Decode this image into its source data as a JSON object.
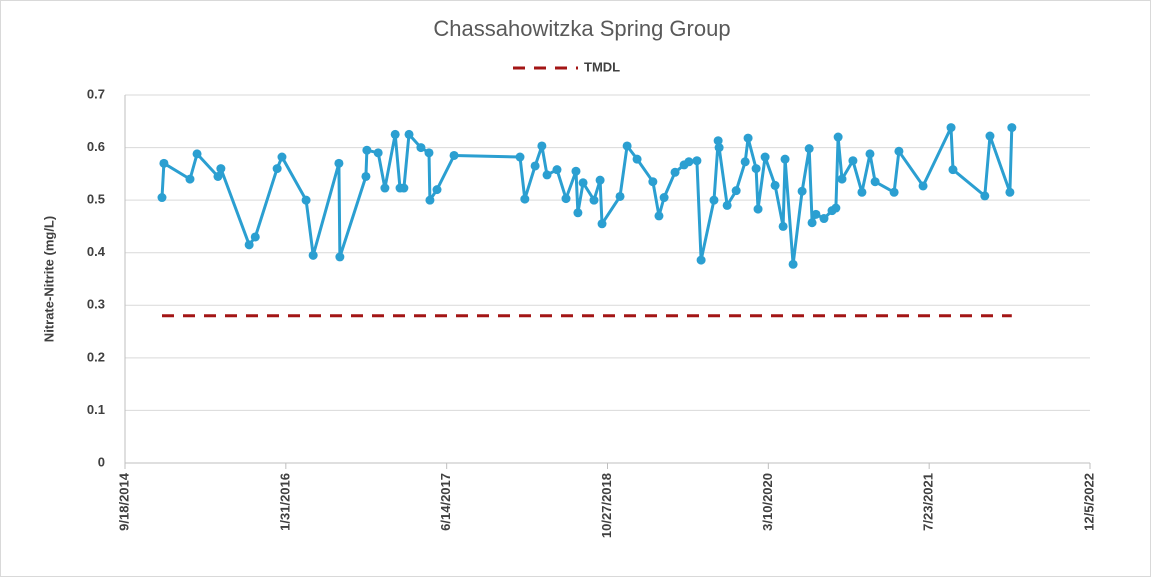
{
  "chart_data": {
    "type": "line",
    "title": "Chassahowitzka Spring Group",
    "y_label": "Nitrate-Nitrite (mg/L)",
    "xlim": [
      "2014-09-18",
      "2022-12-05"
    ],
    "xticks": [
      {
        "value": "2014-09-18",
        "label": "9/18/2014"
      },
      {
        "value": "2016-01-31",
        "label": "1/31/2016"
      },
      {
        "value": "2017-06-14",
        "label": "6/14/2017"
      },
      {
        "value": "2018-10-27",
        "label": "10/27/2018"
      },
      {
        "value": "2020-03-10",
        "label": "3/10/2020"
      },
      {
        "value": "2021-07-23",
        "label": "7/23/2021"
      },
      {
        "value": "2022-12-05",
        "label": "12/5/2022"
      }
    ],
    "ylim": [
      0,
      0.7
    ],
    "yticks": [
      0,
      0.1,
      0.2,
      0.3,
      0.4,
      0.5,
      0.6,
      0.7
    ],
    "grid": true,
    "legend": "top",
    "series": [
      {
        "color": "#2b9fd1",
        "markers": true,
        "x": [
          "2015-01-11",
          "2015-01-17",
          "2015-04-08",
          "2015-04-30",
          "2015-07-04",
          "2015-07-13",
          "2015-10-09",
          "2015-10-28",
          "2016-01-04",
          "2016-01-19",
          "2016-04-03",
          "2016-04-25",
          "2016-07-14",
          "2016-07-17",
          "2016-10-06",
          "2016-10-09",
          "2016-11-13",
          "2016-12-04",
          "2017-01-05",
          "2017-01-20",
          "2017-02-01",
          "2017-02-17",
          "2017-03-26",
          "2017-04-20",
          "2017-04-23",
          "2017-05-15",
          "2017-07-07",
          "2018-01-28",
          "2018-02-12",
          "2018-03-16",
          "2018-04-06",
          "2018-04-22",
          "2018-05-23",
          "2018-06-20",
          "2018-07-21",
          "2018-07-27",
          "2018-08-12",
          "2018-09-15",
          "2018-10-04",
          "2018-10-10",
          "2018-12-05",
          "2018-12-27",
          "2019-01-27",
          "2019-03-17",
          "2019-04-05",
          "2019-04-21",
          "2019-05-25",
          "2019-06-22",
          "2019-07-07",
          "2019-08-01",
          "2019-08-14",
          "2019-09-23",
          "2019-10-06",
          "2019-10-09",
          "2019-11-03",
          "2019-12-01",
          "2019-12-29",
          "2020-01-07",
          "2020-02-01",
          "2020-02-07",
          "2020-02-29",
          "2020-03-31",
          "2020-04-25",
          "2020-05-01",
          "2020-05-26",
          "2020-06-23",
          "2020-07-15",
          "2020-07-24",
          "2020-08-05",
          "2020-08-30",
          "2020-09-24",
          "2020-10-06",
          "2020-10-13",
          "2020-10-25",
          "2020-11-28",
          "2020-12-26",
          "2021-01-20",
          "2021-02-05",
          "2021-04-05",
          "2021-04-20",
          "2021-07-04",
          "2021-09-29",
          "2021-10-05",
          "2022-01-12",
          "2022-01-28",
          "2022-03-31",
          "2022-04-06"
        ],
        "values": [
          0.505,
          0.57,
          0.54,
          0.588,
          0.545,
          0.56,
          0.415,
          0.43,
          0.56,
          0.582,
          0.5,
          0.395,
          0.57,
          0.392,
          0.545,
          0.595,
          0.59,
          0.523,
          0.625,
          0.523,
          0.523,
          0.625,
          0.6,
          0.59,
          0.5,
          0.52,
          0.585,
          0.582,
          0.502,
          0.565,
          0.603,
          0.548,
          0.558,
          0.503,
          0.555,
          0.476,
          0.533,
          0.5,
          0.538,
          0.455,
          0.507,
          0.603,
          0.578,
          0.535,
          0.47,
          0.505,
          0.553,
          0.567,
          0.573,
          0.575,
          0.386,
          0.5,
          0.613,
          0.6,
          0.49,
          0.518,
          0.573,
          0.618,
          0.56,
          0.483,
          0.582,
          0.528,
          0.45,
          0.578,
          0.378,
          0.517,
          0.598,
          0.457,
          0.473,
          0.465,
          0.48,
          0.485,
          0.62,
          0.54,
          0.575,
          0.515,
          0.588,
          0.535,
          0.515,
          0.593,
          0.527,
          0.638,
          0.558,
          0.508,
          0.622,
          0.515,
          0.638
        ]
      },
      {
        "name": "TMDL",
        "color": "#a31515",
        "dashed": true,
        "x": [
          "2015-01-11",
          "2022-04-06"
        ],
        "values": [
          0.28,
          0.28
        ]
      }
    ]
  }
}
